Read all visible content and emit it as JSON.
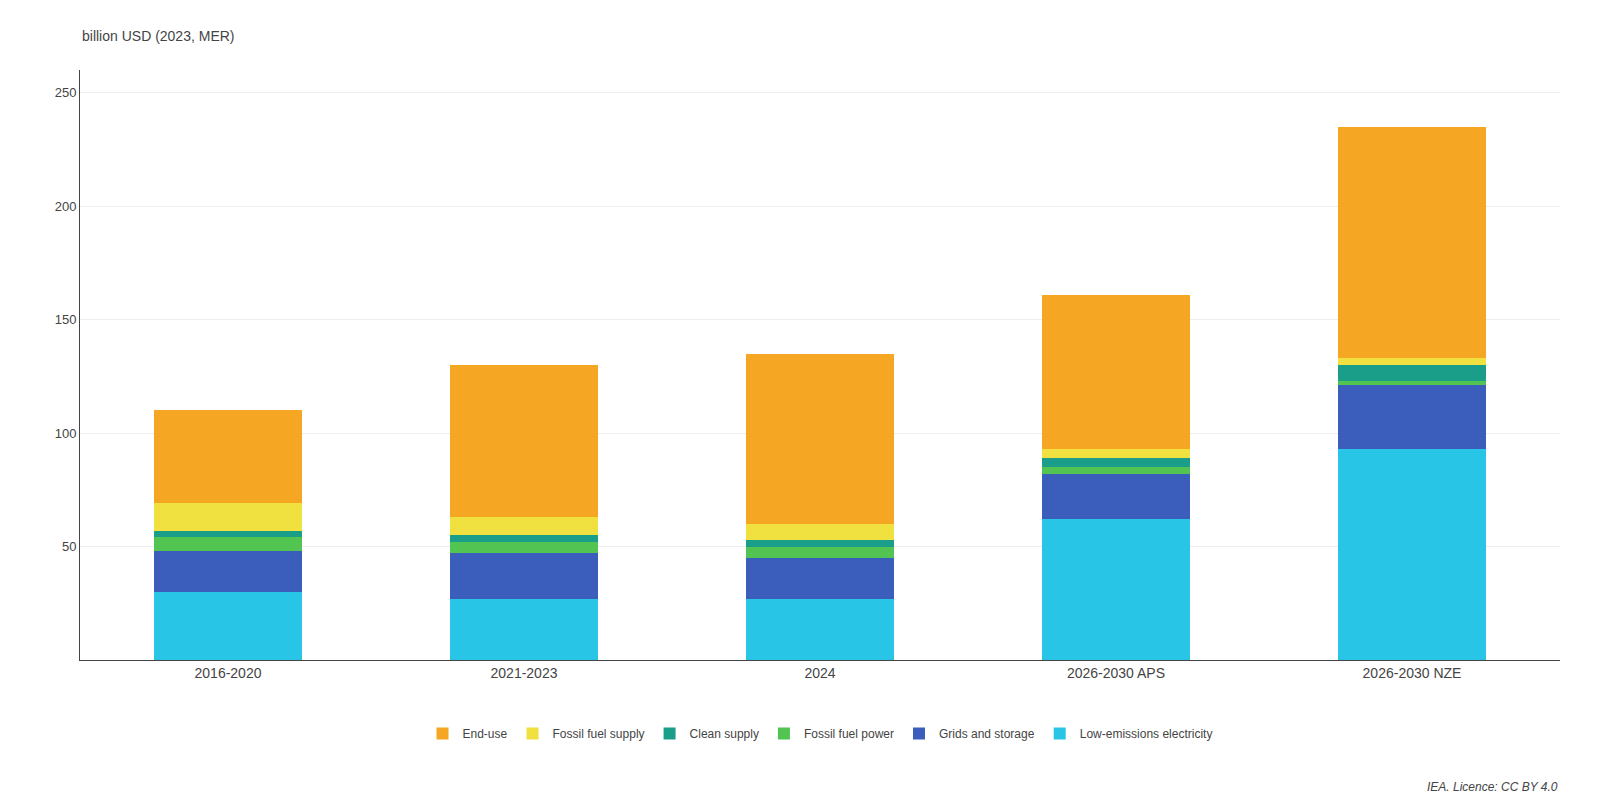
{
  "chart_data": {
    "type": "bar",
    "stacked": true,
    "categories": [
      "2016-2020",
      "2021-2023",
      "2024",
      "2026-2030 APS",
      "2026-2030 NZE"
    ],
    "series": [
      {
        "name": "Low-emissions electricity",
        "color": "#29C5E6",
        "values": [
          30,
          27,
          27,
          62,
          93
        ]
      },
      {
        "name": "Grids and storage",
        "color": "#3B5EBD",
        "values": [
          18,
          20,
          18,
          20,
          28
        ]
      },
      {
        "name": "Fossil fuel power",
        "color": "#52C452",
        "values": [
          6,
          5,
          5,
          3,
          2
        ]
      },
      {
        "name": "Clean supply",
        "color": "#1A9E8A",
        "values": [
          3,
          3,
          3,
          4,
          7
        ]
      },
      {
        "name": "Fossil fuel supply",
        "color": "#F0E040",
        "values": [
          12,
          8,
          7,
          4,
          3
        ]
      },
      {
        "name": "End-use",
        "color": "#F5A623",
        "values": [
          41,
          67,
          75,
          68,
          102
        ]
      }
    ],
    "ylabel": "billion USD (2023, MER)",
    "annotations": [
      "IEA. Licence: CC BY 4.0"
    ],
    "ylim": [
      0,
      260
    ],
    "yticks": [
      50,
      100,
      150,
      200,
      250
    ],
    "grid": true,
    "legend": "bottom"
  }
}
